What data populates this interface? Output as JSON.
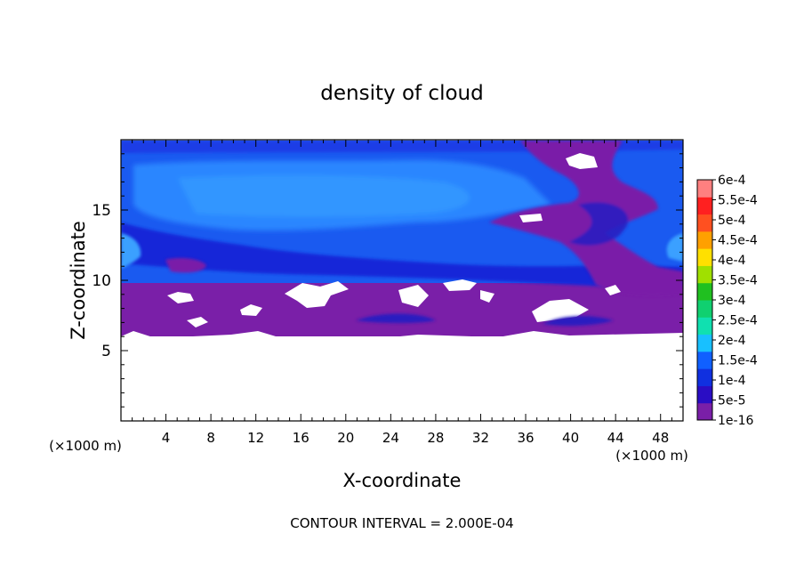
{
  "chart_data": {
    "type": "heatmap",
    "title": "density of cloud",
    "xlabel": "X-coordinate",
    "ylabel": "Z-coordinate",
    "x_unit": "(×1000 m)",
    "z_unit": "(×1000 m)",
    "xlim": [
      0,
      50
    ],
    "ylim": [
      0,
      20
    ],
    "x_ticks": [
      4,
      8,
      12,
      16,
      20,
      24,
      28,
      32,
      36,
      40,
      44,
      48
    ],
    "y_ticks": [
      5,
      10,
      15
    ],
    "contour_interval": "CONTOUR INTERVAL = 2.000E-04",
    "colorbar": {
      "labels": [
        "1e-16",
        "5e-5",
        "1e-4",
        "1.5e-4",
        "2e-4",
        "2.5e-4",
        "3e-4",
        "3.5e-4",
        "4e-4",
        "4.5e-4",
        "5e-4",
        "5.5e-4",
        "6e-4"
      ],
      "colors": [
        "#7a1fa8",
        "#2a0dc4",
        "#1030e0",
        "#1060ff",
        "#18c0ff",
        "#10e0b0",
        "#10d070",
        "#20c020",
        "#a0e000",
        "#ffe000",
        "#ffa000",
        "#ff5020",
        "#ff2020",
        "#ff8080"
      ]
    },
    "field_regions": {
      "cloud_base_km": 6.2,
      "cloud_top_km": 19.8,
      "purple_layer_km": [
        6.2,
        10.0
      ],
      "blue_layer_km": [
        10.0,
        19.8
      ],
      "dominant_range": [
        "1e-16",
        "1.5e-4"
      ]
    }
  }
}
